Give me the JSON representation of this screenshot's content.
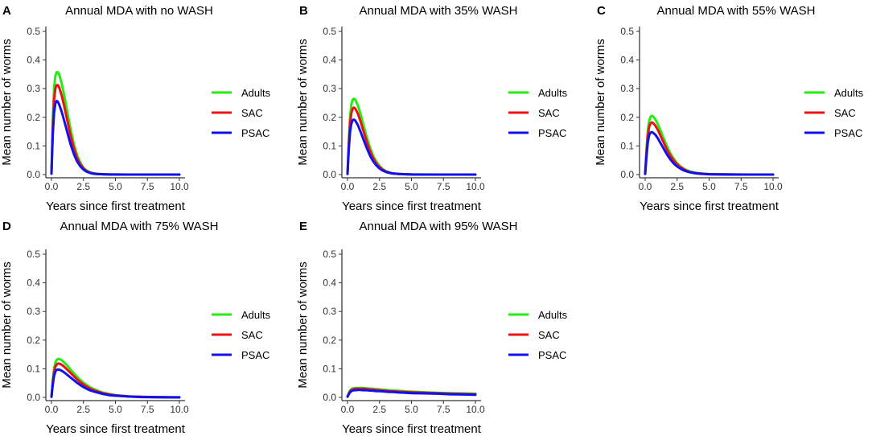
{
  "chart_data": [
    {
      "type": "line",
      "panel": "A",
      "title": "Annual MDA with no WASH",
      "xlabel": "Years since first treatment",
      "ylabel": "Mean number of worms",
      "xlim": [
        0,
        10
      ],
      "ylim": [
        0,
        0.5
      ],
      "xticks": [
        "0.0",
        "2.5",
        "5.0",
        "7.5",
        "10.0"
      ],
      "yticks": [
        "0.0",
        "0.1",
        "0.2",
        "0.3",
        "0.4",
        "0.5"
      ],
      "legend": [
        "Adults",
        "SAC",
        "PSAC"
      ],
      "x": [
        0,
        0.1,
        0.2,
        0.3,
        0.4,
        0.5,
        0.6,
        0.8,
        1.0,
        1.25,
        1.5,
        1.75,
        2.0,
        2.25,
        2.5,
        2.75,
        3.0,
        3.25,
        3.5,
        4.0,
        4.5,
        5.0,
        6.0,
        7.0,
        8.0,
        9.0,
        10.0
      ],
      "series": [
        {
          "name": "Adults",
          "color": "#22ee11",
          "values": [
            0.005,
            0.19,
            0.3,
            0.345,
            0.358,
            0.357,
            0.35,
            0.318,
            0.275,
            0.215,
            0.157,
            0.107,
            0.068,
            0.042,
            0.024,
            0.014,
            0.008,
            0.005,
            0.003,
            0.001,
            0.0005,
            0.0002,
            0.0001,
            0.0,
            0.0,
            0.0,
            0.0
          ]
        },
        {
          "name": "SAC",
          "color": "#ee1111",
          "values": [
            0.004,
            0.16,
            0.26,
            0.3,
            0.312,
            0.312,
            0.305,
            0.276,
            0.238,
            0.185,
            0.135,
            0.092,
            0.058,
            0.036,
            0.021,
            0.012,
            0.007,
            0.004,
            0.002,
            0.001,
            0.0004,
            0.0002,
            0.0001,
            0.0,
            0.0,
            0.0,
            0.0
          ]
        },
        {
          "name": "PSAC",
          "color": "#1111ee",
          "values": [
            0.003,
            0.14,
            0.215,
            0.248,
            0.257,
            0.254,
            0.245,
            0.219,
            0.187,
            0.145,
            0.105,
            0.072,
            0.046,
            0.029,
            0.017,
            0.01,
            0.006,
            0.003,
            0.002,
            0.001,
            0.0003,
            0.0001,
            0.0,
            0.0,
            0.0,
            0.0,
            0.0
          ]
        }
      ]
    },
    {
      "type": "line",
      "panel": "B",
      "title": "Annual MDA with 35% WASH",
      "xlabel": "Years since first treatment",
      "ylabel": "Mean number of worms",
      "xlim": [
        0,
        10
      ],
      "ylim": [
        0,
        0.5
      ],
      "xticks": [
        "0.0",
        "2.5",
        "5.0",
        "7.5",
        "10.0"
      ],
      "yticks": [
        "0.0",
        "0.1",
        "0.2",
        "0.3",
        "0.4",
        "0.5"
      ],
      "legend": [
        "Adults",
        "SAC",
        "PSAC"
      ],
      "x": [
        0,
        0.1,
        0.2,
        0.3,
        0.4,
        0.5,
        0.6,
        0.8,
        1.0,
        1.25,
        1.5,
        1.75,
        2.0,
        2.25,
        2.5,
        2.75,
        3.0,
        3.25,
        3.5,
        4.0,
        4.5,
        5.0,
        6.0,
        7.0,
        8.0,
        9.0,
        10.0
      ],
      "series": [
        {
          "name": "Adults",
          "color": "#22ee11",
          "values": [
            0.004,
            0.12,
            0.205,
            0.245,
            0.262,
            0.265,
            0.262,
            0.243,
            0.214,
            0.172,
            0.131,
            0.095,
            0.066,
            0.045,
            0.03,
            0.019,
            0.012,
            0.008,
            0.005,
            0.002,
            0.001,
            0.0005,
            0.0002,
            0.0001,
            0.0,
            0.0,
            0.0
          ]
        },
        {
          "name": "SAC",
          "color": "#ee1111",
          "values": [
            0.003,
            0.105,
            0.18,
            0.215,
            0.23,
            0.234,
            0.231,
            0.214,
            0.188,
            0.151,
            0.115,
            0.083,
            0.058,
            0.039,
            0.026,
            0.017,
            0.011,
            0.007,
            0.004,
            0.002,
            0.001,
            0.0004,
            0.0001,
            0.0,
            0.0,
            0.0,
            0.0
          ]
        },
        {
          "name": "PSAC",
          "color": "#1111ee",
          "values": [
            0.002,
            0.09,
            0.15,
            0.178,
            0.19,
            0.192,
            0.189,
            0.174,
            0.152,
            0.122,
            0.093,
            0.067,
            0.047,
            0.032,
            0.021,
            0.014,
            0.009,
            0.006,
            0.004,
            0.002,
            0.001,
            0.0003,
            0.0001,
            0.0,
            0.0,
            0.0,
            0.0
          ]
        }
      ]
    },
    {
      "type": "line",
      "panel": "C",
      "title": "Annual MDA with 55% WASH",
      "xlabel": "Years since first treatment",
      "ylabel": "Mean number of worms",
      "xlim": [
        0,
        10
      ],
      "ylim": [
        0,
        0.5
      ],
      "xticks": [
        "0.0",
        "2.5",
        "5.0",
        "7.5",
        "10.0"
      ],
      "yticks": [
        "0.0",
        "0.1",
        "0.2",
        "0.3",
        "0.4",
        "0.5"
      ],
      "legend": [
        "Adults",
        "SAC",
        "PSAC"
      ],
      "x": [
        0,
        0.1,
        0.2,
        0.3,
        0.4,
        0.5,
        0.6,
        0.8,
        1.0,
        1.25,
        1.5,
        1.75,
        2.0,
        2.25,
        2.5,
        2.75,
        3.0,
        3.25,
        3.5,
        4.0,
        4.5,
        5.0,
        6.0,
        7.0,
        8.0,
        9.0,
        10.0
      ],
      "series": [
        {
          "name": "Adults",
          "color": "#22ee11",
          "values": [
            0.003,
            0.085,
            0.15,
            0.185,
            0.2,
            0.205,
            0.204,
            0.193,
            0.175,
            0.148,
            0.12,
            0.094,
            0.072,
            0.054,
            0.04,
            0.029,
            0.021,
            0.015,
            0.011,
            0.006,
            0.003,
            0.002,
            0.001,
            0.0003,
            0.0001,
            0.0,
            0.0
          ]
        },
        {
          "name": "SAC",
          "color": "#ee1111",
          "values": [
            0.003,
            0.075,
            0.133,
            0.165,
            0.178,
            0.182,
            0.181,
            0.171,
            0.155,
            0.131,
            0.106,
            0.083,
            0.064,
            0.048,
            0.035,
            0.026,
            0.019,
            0.013,
            0.009,
            0.005,
            0.003,
            0.001,
            0.0005,
            0.0002,
            0.0001,
            0.0,
            0.0
          ]
        },
        {
          "name": "PSAC",
          "color": "#1111ee",
          "values": [
            0.002,
            0.06,
            0.11,
            0.136,
            0.146,
            0.148,
            0.147,
            0.139,
            0.126,
            0.106,
            0.086,
            0.067,
            0.051,
            0.038,
            0.028,
            0.021,
            0.015,
            0.011,
            0.008,
            0.004,
            0.002,
            0.001,
            0.0004,
            0.0001,
            0.0,
            0.0,
            0.0
          ]
        }
      ]
    },
    {
      "type": "line",
      "panel": "D",
      "title": "Annual MDA with 75% WASH",
      "xlabel": "Years since first treatment",
      "ylabel": "Mean number of worms",
      "xlim": [
        0,
        10
      ],
      "ylim": [
        0,
        0.5
      ],
      "xticks": [
        "0.0",
        "2.5",
        "5.0",
        "7.5",
        "10.0"
      ],
      "yticks": [
        "0.0",
        "0.1",
        "0.2",
        "0.3",
        "0.4",
        "0.5"
      ],
      "legend": [
        "Adults",
        "SAC",
        "PSAC"
      ],
      "x": [
        0,
        0.1,
        0.2,
        0.3,
        0.4,
        0.5,
        0.6,
        0.8,
        1.0,
        1.25,
        1.5,
        1.75,
        2.0,
        2.25,
        2.5,
        2.75,
        3.0,
        3.25,
        3.5,
        4.0,
        4.5,
        5.0,
        6.0,
        7.0,
        8.0,
        9.0,
        10.0
      ],
      "series": [
        {
          "name": "Adults",
          "color": "#22ee11",
          "values": [
            0.003,
            0.06,
            0.1,
            0.122,
            0.131,
            0.134,
            0.134,
            0.13,
            0.122,
            0.11,
            0.097,
            0.084,
            0.072,
            0.061,
            0.051,
            0.043,
            0.036,
            0.03,
            0.025,
            0.017,
            0.012,
            0.008,
            0.004,
            0.002,
            0.001,
            0.0005,
            0.0002
          ]
        },
        {
          "name": "SAC",
          "color": "#ee1111",
          "values": [
            0.002,
            0.052,
            0.088,
            0.107,
            0.115,
            0.118,
            0.118,
            0.114,
            0.107,
            0.096,
            0.085,
            0.074,
            0.063,
            0.053,
            0.045,
            0.038,
            0.031,
            0.026,
            0.022,
            0.015,
            0.01,
            0.007,
            0.003,
            0.002,
            0.001,
            0.0004,
            0.0002
          ]
        },
        {
          "name": "PSAC",
          "color": "#1111ee",
          "values": [
            0.002,
            0.045,
            0.075,
            0.09,
            0.096,
            0.097,
            0.097,
            0.093,
            0.087,
            0.078,
            0.069,
            0.06,
            0.051,
            0.043,
            0.036,
            0.03,
            0.025,
            0.021,
            0.018,
            0.012,
            0.008,
            0.006,
            0.003,
            0.001,
            0.0007,
            0.0003,
            0.0001
          ]
        }
      ]
    },
    {
      "type": "line",
      "panel": "E",
      "title": "Annual MDA with 95% WASH",
      "xlabel": "Years since first treatment",
      "ylabel": "Mean number of worms",
      "xlim": [
        0,
        10
      ],
      "ylim": [
        0,
        0.5
      ],
      "xticks": [
        "0.0",
        "2.5",
        "5.0",
        "7.5",
        "10.0"
      ],
      "yticks": [
        "0.0",
        "0.1",
        "0.2",
        "0.3",
        "0.4",
        "0.5"
      ],
      "legend": [
        "Adults",
        "SAC",
        "PSAC"
      ],
      "x": [
        0,
        0.1,
        0.2,
        0.3,
        0.4,
        0.5,
        0.6,
        0.8,
        1.0,
        1.25,
        1.5,
        1.75,
        2.0,
        2.25,
        2.5,
        2.75,
        3.0,
        3.25,
        3.5,
        4.0,
        4.5,
        5.0,
        6.0,
        7.0,
        8.0,
        9.0,
        10.0
      ],
      "series": [
        {
          "name": "Adults",
          "color": "#22ee11",
          "values": [
            0.003,
            0.015,
            0.024,
            0.029,
            0.031,
            0.032,
            0.033,
            0.033,
            0.033,
            0.033,
            0.032,
            0.031,
            0.03,
            0.029,
            0.028,
            0.027,
            0.026,
            0.025,
            0.024,
            0.023,
            0.021,
            0.02,
            0.018,
            0.016,
            0.015,
            0.014,
            0.013
          ]
        },
        {
          "name": "SAC",
          "color": "#ee1111",
          "values": [
            0.003,
            0.013,
            0.021,
            0.026,
            0.028,
            0.029,
            0.03,
            0.03,
            0.03,
            0.03,
            0.029,
            0.028,
            0.027,
            0.026,
            0.025,
            0.024,
            0.023,
            0.022,
            0.022,
            0.02,
            0.019,
            0.018,
            0.016,
            0.015,
            0.013,
            0.012,
            0.011
          ]
        },
        {
          "name": "PSAC",
          "color": "#1111ee",
          "values": [
            0.002,
            0.011,
            0.018,
            0.022,
            0.024,
            0.025,
            0.025,
            0.026,
            0.026,
            0.025,
            0.025,
            0.024,
            0.023,
            0.022,
            0.022,
            0.021,
            0.02,
            0.019,
            0.019,
            0.017,
            0.016,
            0.015,
            0.014,
            0.013,
            0.011,
            0.01,
            0.009
          ]
        }
      ]
    }
  ]
}
